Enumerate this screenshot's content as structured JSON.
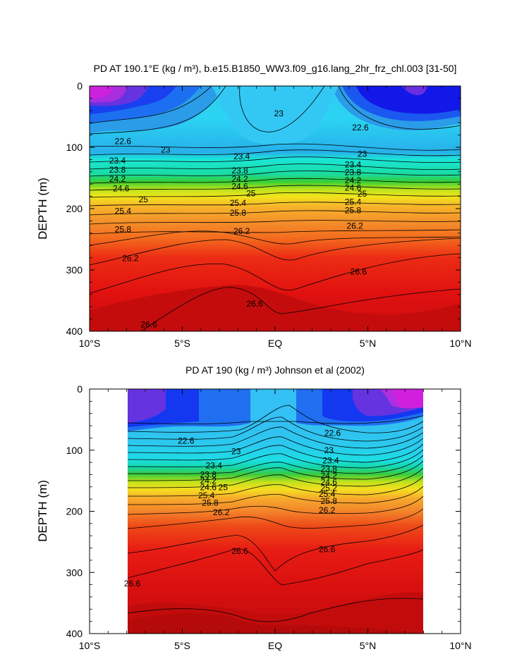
{
  "chart_data": [
    {
      "type": "contour",
      "title": "PD AT 190.1°E (kg / m³), b.e15.B1850_WW3.f09_g16.lang_2hr_frz_chl.003 [31-50]",
      "ylabel": "DEPTH (m)",
      "xlabel": "",
      "x_tick_labels": [
        "10°S",
        "5°S",
        "EQ",
        "5°N",
        "10°N"
      ],
      "x_ticks": [
        -10,
        -5,
        0,
        5,
        10
      ],
      "xlim": [
        -10,
        10
      ],
      "y_ticks": [
        0,
        100,
        200,
        300,
        400
      ],
      "ylim": [
        400,
        0
      ],
      "y_inverted": true,
      "data_x_extent": [
        -10,
        10
      ],
      "contour_interval": 0.2,
      "colormap": "rainbow (purple = light, red = dense)",
      "contour_labels": [
        {
          "text": "22.6",
          "x": -8.2,
          "y": 90
        },
        {
          "text": "23",
          "x": -5.9,
          "y": 104
        },
        {
          "text": "23",
          "x": 0.2,
          "y": 45
        },
        {
          "text": "22.6",
          "x": 4.6,
          "y": 68
        },
        {
          "text": "23",
          "x": 4.7,
          "y": 111
        },
        {
          "text": "23.4",
          "x": -8.5,
          "y": 122
        },
        {
          "text": "23.8",
          "x": -8.5,
          "y": 137
        },
        {
          "text": "24.2",
          "x": -8.5,
          "y": 152
        },
        {
          "text": "24.6",
          "x": -8.3,
          "y": 167
        },
        {
          "text": "25",
          "x": -7.1,
          "y": 185
        },
        {
          "text": "25.4",
          "x": -8.2,
          "y": 204
        },
        {
          "text": "25.8",
          "x": -8.2,
          "y": 234
        },
        {
          "text": "26.2",
          "x": -7.8,
          "y": 281
        },
        {
          "text": "26.6",
          "x": -6.8,
          "y": 389
        },
        {
          "text": "23.4",
          "x": -1.8,
          "y": 115
        },
        {
          "text": "23.8",
          "x": -1.9,
          "y": 138
        },
        {
          "text": "24.2",
          "x": -1.9,
          "y": 152
        },
        {
          "text": "24.6",
          "x": -1.9,
          "y": 164
        },
        {
          "text": "25",
          "x": -1.3,
          "y": 175
        },
        {
          "text": "25.4",
          "x": -2.0,
          "y": 191
        },
        {
          "text": "25.8",
          "x": -2.0,
          "y": 207
        },
        {
          "text": "26.2",
          "x": -1.8,
          "y": 237
        },
        {
          "text": "26.6",
          "x": -1.1,
          "y": 355
        },
        {
          "text": "23.4",
          "x": 4.2,
          "y": 128
        },
        {
          "text": "23.8",
          "x": 4.2,
          "y": 141
        },
        {
          "text": "24.2",
          "x": 4.2,
          "y": 154
        },
        {
          "text": "24.6",
          "x": 4.2,
          "y": 166
        },
        {
          "text": "25",
          "x": 4.7,
          "y": 176
        },
        {
          "text": "25.4",
          "x": 4.2,
          "y": 189
        },
        {
          "text": "25.8",
          "x": 4.2,
          "y": 203
        },
        {
          "text": "26.2",
          "x": 4.3,
          "y": 228
        },
        {
          "text": "26.6",
          "x": 4.5,
          "y": 303
        }
      ]
    },
    {
      "type": "contour",
      "title": "PD AT 190 (kg / m³) Johnson et al (2002)",
      "ylabel": "DEPTH (m)",
      "xlabel": "",
      "x_tick_labels": [
        "10°S",
        "5°S",
        "EQ",
        "5°N",
        "10°N"
      ],
      "x_ticks": [
        -10,
        -5,
        0,
        5,
        10
      ],
      "xlim": [
        -10,
        10
      ],
      "y_ticks": [
        0,
        100,
        200,
        300,
        400
      ],
      "ylim": [
        400,
        0
      ],
      "y_inverted": true,
      "data_x_extent": [
        -8,
        8
      ],
      "contour_interval": 0.2,
      "colormap": "rainbow (purple = light, red = dense)",
      "contour_labels": [
        {
          "text": "22.6",
          "x": -4.8,
          "y": 85
        },
        {
          "text": "23",
          "x": -2.1,
          "y": 102
        },
        {
          "text": "22.6",
          "x": 3.1,
          "y": 72
        },
        {
          "text": "23",
          "x": 2.9,
          "y": 100
        },
        {
          "text": "23.4",
          "x": -3.3,
          "y": 125
        },
        {
          "text": "23.8",
          "x": -3.6,
          "y": 140
        },
        {
          "text": "24.2",
          "x": -3.6,
          "y": 150
        },
        {
          "text": "24.6",
          "x": -3.6,
          "y": 161
        },
        {
          "text": "25",
          "x": -2.8,
          "y": 161
        },
        {
          "text": "25.4",
          "x": -3.7,
          "y": 174
        },
        {
          "text": "25.8",
          "x": -3.5,
          "y": 186
        },
        {
          "text": "26.2",
          "x": -2.9,
          "y": 202
        },
        {
          "text": "26.6",
          "x": -1.9,
          "y": 265
        },
        {
          "text": "26.6",
          "x": -7.7,
          "y": 318
        },
        {
          "text": "23.4",
          "x": 3.0,
          "y": 117
        },
        {
          "text": "23.8",
          "x": 2.9,
          "y": 131
        },
        {
          "text": "24.2",
          "x": 2.9,
          "y": 142
        },
        {
          "text": "24.6",
          "x": 2.9,
          "y": 152
        },
        {
          "text": "25.2",
          "x": 2.9,
          "y": 162
        },
        {
          "text": "25.4",
          "x": 2.8,
          "y": 172
        },
        {
          "text": "25.8",
          "x": 2.9,
          "y": 183
        },
        {
          "text": "26.2",
          "x": 2.8,
          "y": 198
        },
        {
          "text": "26.6",
          "x": 2.8,
          "y": 262
        }
      ]
    }
  ]
}
